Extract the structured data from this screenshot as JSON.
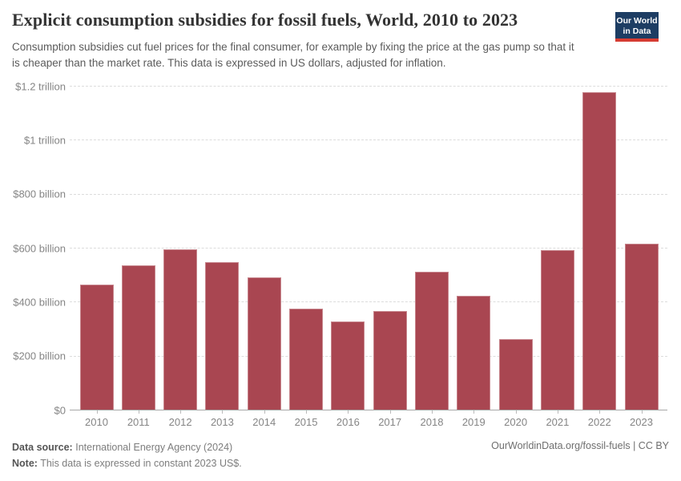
{
  "header": {
    "title": "Explicit consumption subsidies for fossil fuels, World, 2010 to 2023",
    "subtitle": "Consumption subsidies cut fuel prices for the final consumer, for example by fixing the price at the gas pump so that it is cheaper than the market rate. This data is expressed in US dollars, adjusted for inflation.",
    "logo": {
      "line1": "Our World",
      "line2": "in Data"
    }
  },
  "footer": {
    "datasource_label": "Data source:",
    "datasource_value": "International Energy Agency (2024)",
    "note_label": "Note:",
    "note_value": "This data is expressed in constant 2023 US$.",
    "link": "OurWorldinData.org/fossil-fuels | CC BY"
  },
  "colors": {
    "bar": "#a94651",
    "grid": "#dcdcdc",
    "axis": "#a8a8a8",
    "tick_text": "#858585",
    "logo_bg": "#1d3d63",
    "logo_underline": "#d73c32"
  },
  "chart_data": {
    "type": "bar",
    "title": "Explicit consumption subsidies for fossil fuels, World, 2010 to 2023",
    "categories": [
      "2010",
      "2011",
      "2012",
      "2013",
      "2014",
      "2015",
      "2016",
      "2017",
      "2018",
      "2019",
      "2020",
      "2021",
      "2022",
      "2023"
    ],
    "values": [
      462,
      535,
      595,
      546,
      490,
      374,
      326,
      365,
      512,
      423,
      261,
      592,
      1175,
      616
    ],
    "unit": "billion US dollars (constant 2023 US$)",
    "xlabel": "",
    "ylabel": "",
    "ylim": [
      0,
      1200
    ],
    "yticks": [
      {
        "value": 0,
        "label": "$0"
      },
      {
        "value": 200,
        "label": "$200 billion"
      },
      {
        "value": 400,
        "label": "$400 billion"
      },
      {
        "value": 600,
        "label": "$600 billion"
      },
      {
        "value": 800,
        "label": "$800 billion"
      },
      {
        "value": 1000,
        "label": "$1 trillion"
      },
      {
        "value": 1200,
        "label": "$1.2 trillion"
      }
    ],
    "grid": "horizontal-dashed",
    "legend": false
  }
}
